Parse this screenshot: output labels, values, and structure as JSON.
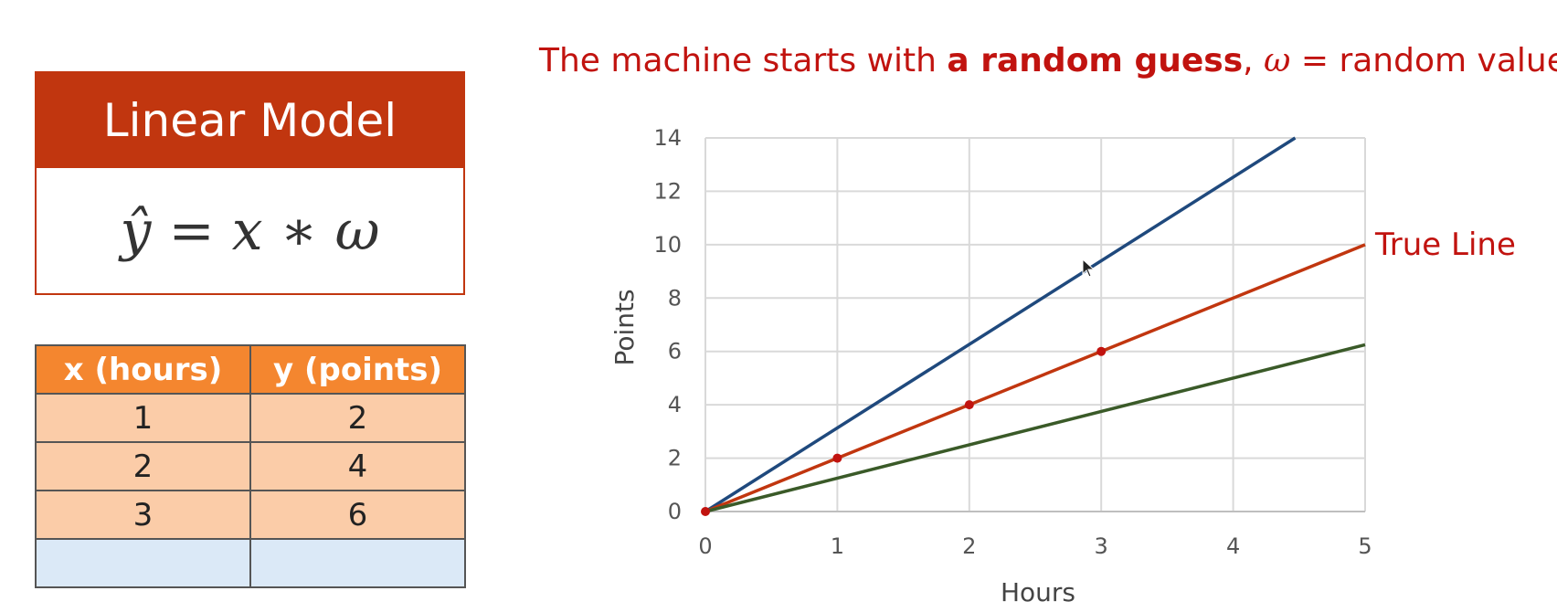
{
  "model": {
    "title": "Linear Model",
    "formula": "ŷ = x ∗ ω"
  },
  "table": {
    "headers": [
      "x (hours)",
      "y (points)"
    ],
    "rows": [
      [
        "1",
        "2"
      ],
      [
        "2",
        "4"
      ],
      [
        "3",
        "6"
      ],
      [
        "",
        ""
      ]
    ]
  },
  "title_parts": {
    "prefix": "The machine starts with ",
    "bold": "a random guess",
    "comma": ", ",
    "omega": "ω",
    "suffix": " = random value"
  },
  "chart_data": {
    "type": "line",
    "xlabel": "Hours",
    "ylabel": "Points",
    "xlim": [
      0,
      5
    ],
    "ylim": [
      0,
      14
    ],
    "xticks": [
      0,
      1,
      2,
      3,
      4,
      5
    ],
    "yticks": [
      0,
      2,
      4,
      6,
      8,
      10,
      12,
      14
    ],
    "grid": true,
    "series": [
      {
        "x": [
          0,
          4.47
        ],
        "y": [
          0,
          14
        ],
        "color": "#1f497d"
      },
      {
        "name": "True Line",
        "x": [
          0,
          5
        ],
        "y": [
          0,
          10
        ],
        "color": "#c1360f"
      },
      {
        "x": [
          0,
          5
        ],
        "y": [
          0,
          6.25
        ],
        "color": "#3a5a28"
      }
    ],
    "points": {
      "x": [
        0,
        1,
        2,
        3
      ],
      "y": [
        0,
        2,
        4,
        6
      ],
      "color": "#c1130f"
    },
    "annotation": "True Line"
  }
}
